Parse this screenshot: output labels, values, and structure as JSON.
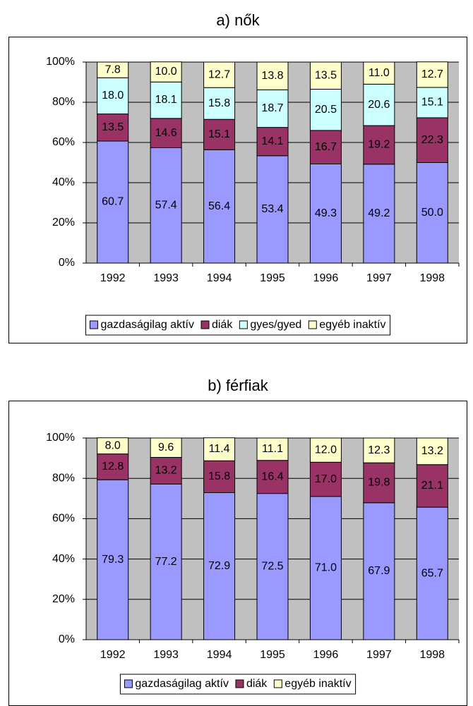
{
  "chart_data": [
    {
      "type": "stacked_bar",
      "title": "a)  nők",
      "categories": [
        "1992",
        "1993",
        "1994",
        "1995",
        "1996",
        "1997",
        "1998"
      ],
      "series": [
        {
          "name": "gazdaságilag aktív",
          "color": "#9999ff",
          "values": [
            60.7,
            57.4,
            56.4,
            53.4,
            49.3,
            49.2,
            50.0
          ],
          "value_labels": [
            "60.7",
            "57.4",
            "56.4",
            "53.4",
            "49.3",
            "49.2",
            "50.0"
          ]
        },
        {
          "name": "diák",
          "color": "#993366",
          "values": [
            13.5,
            14.6,
            15.1,
            14.1,
            16.7,
            19.2,
            22.3
          ],
          "value_labels": [
            "13.5",
            "14.6",
            "15.1",
            "14.1",
            "16.7",
            "19.2",
            "22.3"
          ]
        },
        {
          "name": "gyes/gyed",
          "color": "#ccffff",
          "values": [
            18.0,
            18.1,
            15.8,
            18.7,
            20.5,
            20.6,
            15.1
          ],
          "value_labels": [
            "18.0",
            "18.1",
            "15.8",
            "18.7",
            "20.5",
            "20.6",
            "15.1"
          ]
        },
        {
          "name": "egyéb inaktív",
          "color": "#ffffcc",
          "values": [
            7.8,
            10.0,
            12.7,
            13.8,
            13.5,
            11.0,
            12.7
          ],
          "value_labels": [
            "7.8",
            "10.0",
            "12.7",
            "13.8",
            "13.5",
            "11.0",
            "12.7"
          ]
        }
      ],
      "ylim": [
        0,
        100
      ],
      "yticks": [
        {
          "value": 0,
          "label": "0%"
        },
        {
          "value": 20,
          "label": "20%"
        },
        {
          "value": 40,
          "label": "40%"
        },
        {
          "value": 60,
          "label": "60%"
        },
        {
          "value": 80,
          "label": "80%"
        },
        {
          "value": 100,
          "label": "100%"
        }
      ],
      "grid": true,
      "legend": "bottom"
    },
    {
      "type": "stacked_bar",
      "title": "b) férfiak",
      "categories": [
        "1992",
        "1993",
        "1994",
        "1995",
        "1996",
        "1997",
        "1998"
      ],
      "series": [
        {
          "name": "gazdaságilag aktív",
          "color": "#9999ff",
          "values": [
            79.3,
            77.2,
            72.9,
            72.5,
            71.0,
            67.9,
            65.7
          ],
          "value_labels": [
            "79.3",
            "77.2",
            "72.9",
            "72.5",
            "71.0",
            "67.9",
            "65.7"
          ]
        },
        {
          "name": "diák",
          "color": "#993366",
          "values": [
            12.8,
            13.2,
            15.8,
            16.4,
            17.0,
            19.8,
            21.1
          ],
          "value_labels": [
            "12.8",
            "13.2",
            "15.8",
            "16.4",
            "17.0",
            "19.8",
            "21.1"
          ]
        },
        {
          "name": "egyéb inaktív",
          "color": "#ffffcc",
          "values": [
            8.0,
            9.6,
            11.4,
            11.1,
            12.0,
            12.3,
            13.2
          ],
          "value_labels": [
            "8.0",
            "9.6",
            "11.4",
            "11.1",
            "12.0",
            "12.3",
            "13.2"
          ]
        }
      ],
      "ylim": [
        0,
        100
      ],
      "yticks": [
        {
          "value": 0,
          "label": "0%"
        },
        {
          "value": 20,
          "label": "20%"
        },
        {
          "value": 40,
          "label": "40%"
        },
        {
          "value": 60,
          "label": "60%"
        },
        {
          "value": 80,
          "label": "80%"
        },
        {
          "value": 100,
          "label": "100%"
        }
      ],
      "grid": true,
      "legend": "bottom"
    }
  ]
}
